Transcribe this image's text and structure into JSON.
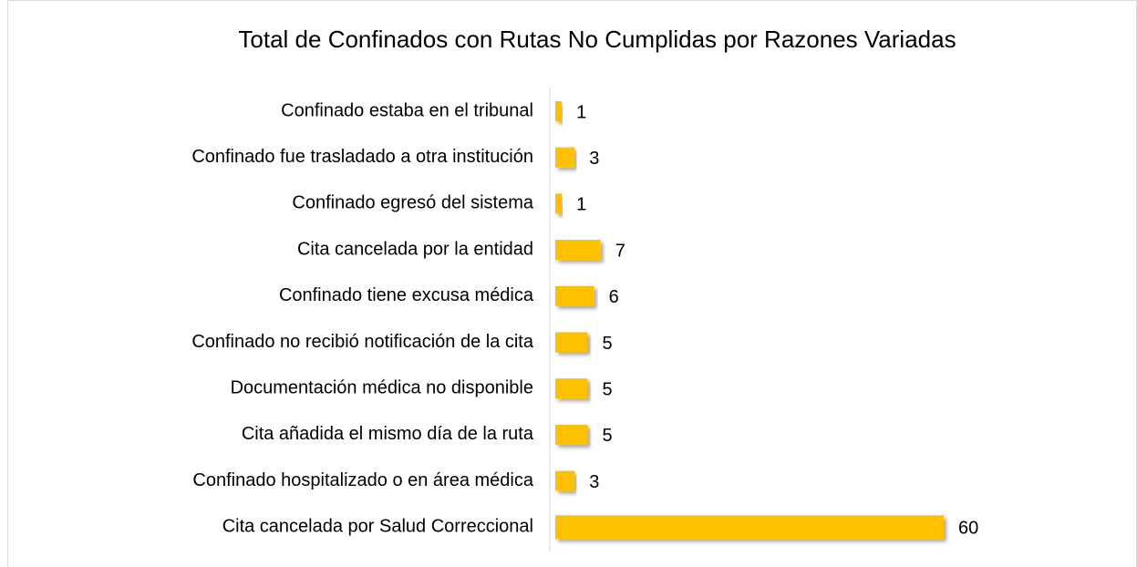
{
  "chart_data": {
    "type": "bar",
    "orientation": "horizontal",
    "title": "Total de Confinados con Rutas No Cumplidas por Razones Variadas",
    "categories": [
      "Confinado estaba en el tribunal",
      "Confinado fue trasladado a otra institución",
      "Confinado egresó del sistema",
      "Cita cancelada por la entidad",
      "Confinado tiene excusa médica",
      "Confinado no recibió notificación de la cita",
      "Documentación médica no disponible",
      "Cita añadida el mismo día de la ruta",
      "Confinado hospitalizado o en área médica",
      "Cita cancelada por Salud Correccional"
    ],
    "values": [
      1,
      3,
      1,
      7,
      6,
      5,
      5,
      5,
      3,
      60
    ],
    "color": "#FFC000"
  }
}
